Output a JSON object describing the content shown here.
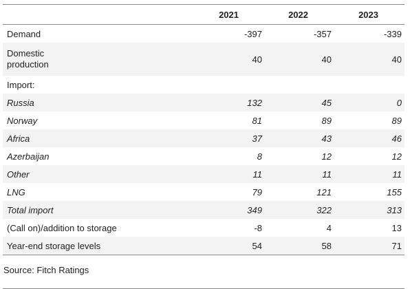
{
  "table": {
    "columns": [
      "",
      "2021",
      "2022",
      "2023"
    ],
    "rows": [
      {
        "label": "Demand",
        "values": [
          "-397",
          "-357",
          "-339"
        ],
        "italic": false,
        "shade": false
      },
      {
        "label": "Domestic production",
        "values": [
          "40",
          "40",
          "40"
        ],
        "italic": false,
        "shade": true
      },
      {
        "label": "Import:",
        "values": [
          "",
          "",
          ""
        ],
        "italic": false,
        "shade": false
      },
      {
        "label": "Russia",
        "values": [
          "132",
          "45",
          "0"
        ],
        "italic": true,
        "shade": true
      },
      {
        "label": "Norway",
        "values": [
          "81",
          "89",
          "89"
        ],
        "italic": true,
        "shade": false
      },
      {
        "label": "Africa",
        "values": [
          "37",
          "43",
          "46"
        ],
        "italic": true,
        "shade": true
      },
      {
        "label": "Azerbaijan",
        "values": [
          "8",
          "12",
          "12"
        ],
        "italic": true,
        "shade": false
      },
      {
        "label": "Other",
        "values": [
          "11",
          "11",
          "11"
        ],
        "italic": true,
        "shade": true
      },
      {
        "label": "LNG",
        "values": [
          "79",
          "121",
          "155"
        ],
        "italic": true,
        "shade": false
      },
      {
        "label": "Total import",
        "values": [
          "349",
          "322",
          "313"
        ],
        "italic": true,
        "shade": true
      },
      {
        "label": "(Call on)/addition to storage",
        "values": [
          "-8",
          "4",
          "13"
        ],
        "italic": false,
        "shade": false
      },
      {
        "label": "Year-end storage levels",
        "values": [
          "54",
          "58",
          "71"
        ],
        "italic": false,
        "shade": true
      }
    ]
  },
  "source": "Source: Fitch Ratings"
}
